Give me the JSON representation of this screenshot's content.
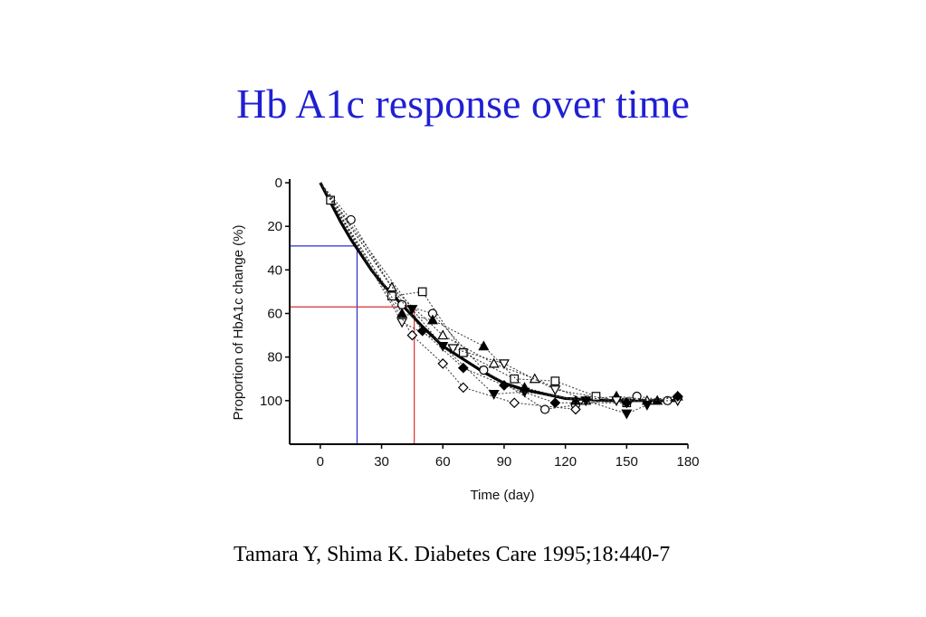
{
  "slide": {
    "title": "Hb A1c response over time",
    "citation": "Tamara Y, Shima K. Diabetes Care 1995;18:440-7",
    "colors": {
      "title": "#1f1fd2",
      "guide_30": "#2a2ad8",
      "guide_60": "#d83030"
    }
  },
  "chart_data": {
    "type": "line",
    "title": "",
    "xlabel": "Time (day)",
    "ylabel": "Proportion of HbA1c change (%)",
    "xlim": [
      -15,
      180
    ],
    "ylim": [
      0,
      120
    ],
    "y_inverted": true,
    "xticks": [
      0,
      30,
      60,
      90,
      120,
      150,
      180
    ],
    "yticks": [
      0,
      20,
      40,
      60,
      80,
      100
    ],
    "grid": false,
    "legend": "none",
    "mean_curve": {
      "x": [
        0,
        5,
        10,
        15,
        20,
        25,
        30,
        40,
        50,
        60,
        70,
        80,
        90,
        100,
        110,
        120,
        140,
        160,
        175
      ],
      "y": [
        0,
        9,
        18,
        26,
        33,
        40,
        46,
        56,
        66,
        75,
        81,
        87,
        92,
        95,
        97,
        99,
        100,
        100,
        100
      ]
    },
    "series": [
      {
        "marker": "square-open",
        "x": [
          5,
          35,
          50,
          70,
          95,
          115,
          135,
          150
        ],
        "y": [
          8,
          52,
          50,
          78,
          90,
          91,
          98,
          101
        ]
      },
      {
        "marker": "circle-open",
        "x": [
          15,
          40,
          55,
          80,
          110,
          125,
          155,
          170
        ],
        "y": [
          17,
          56,
          60,
          86,
          104,
          102,
          98,
          100
        ]
      },
      {
        "marker": "triangle-open",
        "x": [
          35,
          60,
          85,
          105,
          130,
          160
        ],
        "y": [
          48,
          70,
          83,
          90,
          100,
          100
        ]
      },
      {
        "marker": "triangle-filled",
        "x": [
          40,
          55,
          80,
          100,
          125,
          145,
          165,
          175
        ],
        "y": [
          60,
          63,
          75,
          94,
          100,
          98,
          100,
          98
        ]
      },
      {
        "marker": "triangle-down-open",
        "x": [
          40,
          65,
          90,
          115,
          145,
          175
        ],
        "y": [
          64,
          76,
          83,
          95,
          100,
          100
        ]
      },
      {
        "marker": "triangle-down-filled",
        "x": [
          45,
          60,
          85,
          100,
          130,
          150,
          160
        ],
        "y": [
          58,
          75,
          97,
          96,
          100,
          106,
          102
        ]
      },
      {
        "marker": "diamond-open",
        "x": [
          45,
          60,
          70,
          95,
          125
        ],
        "y": [
          70,
          83,
          94,
          101,
          104
        ]
      },
      {
        "marker": "diamond-filled",
        "x": [
          50,
          70,
          90,
          115,
          150,
          175
        ],
        "y": [
          68,
          85,
          93,
          101,
          101,
          98
        ]
      }
    ],
    "reference_lines": [
      {
        "color": "#2a2ad8",
        "level_y": 29,
        "at_x": 18
      },
      {
        "color": "#d83030",
        "level_y": 57,
        "at_x": 46
      }
    ]
  }
}
